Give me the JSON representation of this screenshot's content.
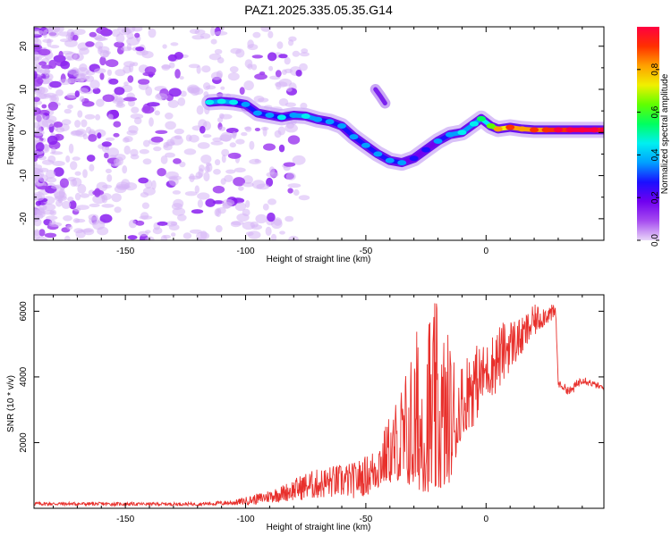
{
  "title": "PAZ1.2025.335.05.35.G14",
  "chart_data": [
    {
      "type": "heatmap",
      "xlabel": "Height of straight line (km)",
      "ylabel": "Frequency (Hz)",
      "xlim": [
        -188,
        49
      ],
      "ylim": [
        -25,
        24.5
      ],
      "xticks": [
        -150,
        -100,
        -50,
        0
      ],
      "yticks": [
        -20,
        -10,
        0,
        10,
        20
      ],
      "colorbar": {
        "label": "Normalized spectral amplitude",
        "range": [
          0,
          1
        ],
        "ticks": [
          "0.0",
          "0.2",
          "0.4",
          "0.6",
          "0.8"
        ],
        "colors": [
          "#e9d6f8",
          "#a64cf0",
          "#7000f0",
          "#1a10ff",
          "#00a0ff",
          "#00f0f0",
          "#00ff60",
          "#60ff00",
          "#f0f000",
          "#ffa000",
          "#ff3000",
          "#ff0040"
        ]
      },
      "ridge": [
        {
          "x": -115,
          "y": 7.0,
          "amp": 0.35
        },
        {
          "x": -110,
          "y": 7.2,
          "amp": 0.38
        },
        {
          "x": -105,
          "y": 7.0,
          "amp": 0.33
        },
        {
          "x": -100,
          "y": 6.5,
          "amp": 0.3
        },
        {
          "x": -95,
          "y": 4.5,
          "amp": 0.28
        },
        {
          "x": -90,
          "y": 4.0,
          "amp": 0.3
        },
        {
          "x": -85,
          "y": 3.5,
          "amp": 0.32
        },
        {
          "x": -80,
          "y": 4.0,
          "amp": 0.3
        },
        {
          "x": -75,
          "y": 3.8,
          "amp": 0.35
        },
        {
          "x": -70,
          "y": 3.0,
          "amp": 0.3
        },
        {
          "x": -65,
          "y": 2.5,
          "amp": 0.3
        },
        {
          "x": -60,
          "y": 1.5,
          "amp": 0.28
        },
        {
          "x": -55,
          "y": -1.0,
          "amp": 0.3
        },
        {
          "x": -50,
          "y": -3.0,
          "amp": 0.25
        },
        {
          "x": -45,
          "y": -5.0,
          "amp": 0.25
        },
        {
          "x": -40,
          "y": -6.5,
          "amp": 0.25
        },
        {
          "x": -35,
          "y": -7.0,
          "amp": 0.22
        },
        {
          "x": -30,
          "y": -6.0,
          "amp": 0.2
        },
        {
          "x": -25,
          "y": -4.0,
          "amp": 0.2
        },
        {
          "x": -20,
          "y": -2.0,
          "amp": 0.25
        },
        {
          "x": -15,
          "y": -0.5,
          "amp": 0.3
        },
        {
          "x": -10,
          "y": 0.0,
          "amp": 0.35
        },
        {
          "x": -5,
          "y": 2.0,
          "amp": 0.38
        },
        {
          "x": -2,
          "y": 3.2,
          "amp": 0.42
        },
        {
          "x": 2,
          "y": 1.5,
          "amp": 0.5
        },
        {
          "x": 5,
          "y": 0.8,
          "amp": 0.7
        },
        {
          "x": 10,
          "y": 1.2,
          "amp": 0.8
        },
        {
          "x": 15,
          "y": 0.8,
          "amp": 0.75
        },
        {
          "x": 20,
          "y": 0.6,
          "amp": 0.8
        },
        {
          "x": 25,
          "y": 0.6,
          "amp": 0.85
        },
        {
          "x": 30,
          "y": 0.6,
          "amp": 0.9
        },
        {
          "x": 35,
          "y": 0.6,
          "amp": 0.95
        },
        {
          "x": 40,
          "y": 0.6,
          "amp": 1.0
        },
        {
          "x": 45,
          "y": 0.6,
          "amp": 0.95
        },
        {
          "x": 49,
          "y": 0.6,
          "amp": 0.9
        }
      ],
      "side_feature": [
        {
          "x": -46,
          "y": 10.0,
          "amp": 0.25
        },
        {
          "x": -44,
          "y": 8.5,
          "amp": 0.22
        },
        {
          "x": -42,
          "y": 6.8,
          "amp": 0.2
        }
      ],
      "noise_region": {
        "x_from": -188,
        "x_to": -95,
        "y_from": -25,
        "y_to": 24.5,
        "amp": 0.12
      }
    },
    {
      "type": "line",
      "xlabel": "Height of straight line (km)",
      "ylabel": "SNR (10 * v/v)",
      "xlim": [
        -188,
        49
      ],
      "ylim": [
        0,
        6500
      ],
      "xticks": [
        -150,
        -100,
        -50,
        0
      ],
      "yticks": [
        2000,
        4000,
        6000
      ],
      "color": "#e8302c",
      "envelope": [
        {
          "x": -188,
          "lo": 80,
          "hi": 200
        },
        {
          "x": -150,
          "lo": 80,
          "hi": 180
        },
        {
          "x": -120,
          "lo": 80,
          "hi": 180
        },
        {
          "x": -105,
          "lo": 90,
          "hi": 250
        },
        {
          "x": -95,
          "lo": 120,
          "hi": 450
        },
        {
          "x": -85,
          "lo": 200,
          "hi": 700
        },
        {
          "x": -75,
          "lo": 250,
          "hi": 1100
        },
        {
          "x": -65,
          "lo": 300,
          "hi": 1300
        },
        {
          "x": -55,
          "lo": 300,
          "hi": 1400
        },
        {
          "x": -48,
          "lo": 400,
          "hi": 1700
        },
        {
          "x": -42,
          "lo": 600,
          "hi": 2500
        },
        {
          "x": -38,
          "lo": 900,
          "hi": 3300
        },
        {
          "x": -32,
          "lo": 700,
          "hi": 4700
        },
        {
          "x": -26,
          "lo": 500,
          "hi": 6400
        },
        {
          "x": -20,
          "lo": 500,
          "hi": 6300
        },
        {
          "x": -15,
          "lo": 800,
          "hi": 5300
        },
        {
          "x": -10,
          "lo": 2300,
          "hi": 4600
        },
        {
          "x": -5,
          "lo": 2500,
          "hi": 5000
        },
        {
          "x": 0,
          "lo": 3300,
          "hi": 5000
        },
        {
          "x": 5,
          "lo": 3500,
          "hi": 5600
        },
        {
          "x": 10,
          "lo": 4200,
          "hi": 5800
        },
        {
          "x": 15,
          "lo": 4600,
          "hi": 5800
        },
        {
          "x": 20,
          "lo": 5200,
          "hi": 6200
        },
        {
          "x": 25,
          "lo": 5600,
          "hi": 6200
        },
        {
          "x": 29,
          "lo": 5700,
          "hi": 6200
        },
        {
          "x": 30,
          "lo": 3700,
          "hi": 3900
        },
        {
          "x": 35,
          "lo": 3400,
          "hi": 3700
        },
        {
          "x": 40,
          "lo": 3800,
          "hi": 4100
        },
        {
          "x": 44,
          "lo": 3700,
          "hi": 3900
        },
        {
          "x": 49,
          "lo": 3550,
          "hi": 3750
        }
      ]
    }
  ]
}
